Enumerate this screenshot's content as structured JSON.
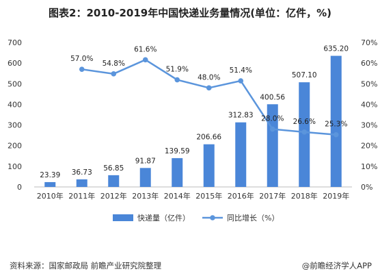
{
  "title": "图表2：2010-2019年中国快递业务量情况(单位：亿件，%)",
  "source": "资料来源：国家邮政局 前瞻产业研究院整理",
  "credit": "@前瞻经济学人APP",
  "colors": {
    "bar": "#4a86d8",
    "line": "#5b95dc",
    "axis": "#bbbbbb",
    "text": "#333333"
  },
  "chart_data": {
    "type": "bar",
    "categories": [
      "2010年",
      "2011年",
      "2012年",
      "2013年",
      "2014年",
      "2015年",
      "2016年",
      "2017年",
      "2018年",
      "2019年"
    ],
    "series": [
      {
        "name": "快递量（亿件）",
        "type": "bar",
        "axis": "left",
        "values": [
          23.39,
          36.73,
          56.85,
          91.87,
          139.59,
          206.66,
          312.83,
          400.56,
          507.1,
          635.2
        ],
        "labels": [
          "23.39",
          "36.73",
          "56.85",
          "91.87",
          "139.59",
          "206.66",
          "312.83",
          "400.56",
          "507.10",
          "635.20"
        ]
      },
      {
        "name": "同比增长（%）",
        "type": "line",
        "axis": "right",
        "values": [
          null,
          57.0,
          54.8,
          61.6,
          51.9,
          48.0,
          51.4,
          28.0,
          26.6,
          25.3
        ],
        "labels": [
          "",
          "57.0%",
          "54.8%",
          "61.6%",
          "51.9%",
          "48.0%",
          "51.4%",
          "28.0%",
          "26.6%",
          "25.3%"
        ]
      }
    ],
    "left_axis": {
      "ylim": [
        0,
        700
      ],
      "ticks": [
        "0",
        "100",
        "200",
        "300",
        "400",
        "500",
        "600",
        "700"
      ]
    },
    "right_axis": {
      "ylim": [
        0,
        70
      ],
      "ticks": [
        "0%",
        "10%",
        "20%",
        "30%",
        "40%",
        "50%",
        "60%",
        "70%"
      ]
    },
    "grid": false,
    "legend": "bottom-center"
  }
}
